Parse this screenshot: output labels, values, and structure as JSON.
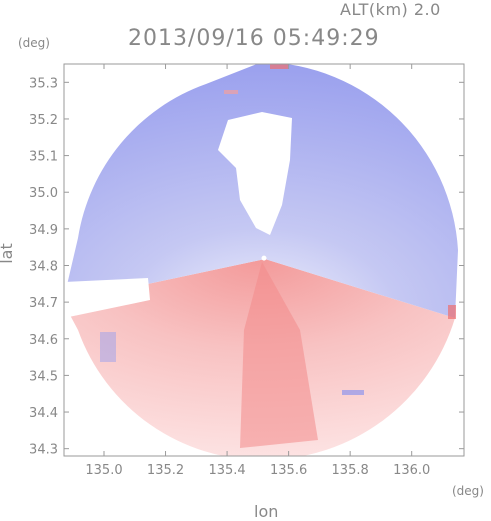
{
  "header": {
    "altitude_label": "ALT(km) 2.0",
    "timestamp": "2013/09/16 05:49:29"
  },
  "chart_data": {
    "type": "heatmap",
    "description_role": "Doppler radial velocity PPI map (blue = toward, red = away), radar near 135.52E 34.82N",
    "xlabel": "lon",
    "ylabel": "lat",
    "x_unit": "(deg)",
    "y_unit": "(deg)",
    "xlim": [
      134.87,
      136.17
    ],
    "ylim": [
      34.28,
      35.35
    ],
    "x_ticks": [
      "135.0",
      "135.2",
      "135.4",
      "135.6",
      "135.8",
      "136.0"
    ],
    "x_tick_values": [
      135.0,
      135.2,
      135.4,
      135.6,
      135.8,
      136.0
    ],
    "y_ticks": [
      "35.3",
      "35.2",
      "35.1",
      "35.0",
      "34.9",
      "34.8",
      "34.7",
      "34.6",
      "34.5",
      "34.4",
      "34.3"
    ],
    "y_tick_values": [
      35.3,
      35.2,
      35.1,
      35.0,
      34.9,
      34.8,
      34.7,
      34.6,
      34.5,
      34.4,
      34.3
    ],
    "radar_center": [
      135.52,
      34.82
    ],
    "colors": {
      "toward": "#8f95ec",
      "away": "#f07a7a",
      "axis": "#9a9a9a",
      "text": "#888888"
    }
  }
}
